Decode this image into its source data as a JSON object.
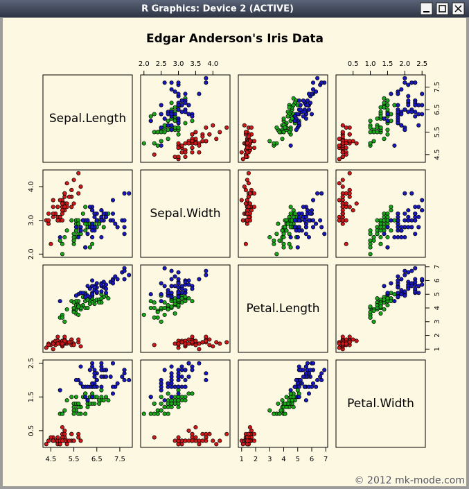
{
  "window": {
    "title": "R Graphics: Device 2 (ACTIVE)"
  },
  "footer": "© 2012 mk-mode.com",
  "chart_data": {
    "type": "scatter-matrix",
    "title": "Edgar Anderson's Iris Data",
    "variables": [
      {
        "name": "Sepal.Length",
        "lim": [
          4.156,
          8.044
        ],
        "xticks": [
          4.5,
          5.5,
          6.5,
          7.5
        ],
        "yticks": [
          4.5,
          5.5,
          6.5,
          7.5
        ]
      },
      {
        "name": "Sepal.Width",
        "lim": [
          1.904,
          4.496
        ],
        "xticks": [
          {
            "value": 2,
            "label": "2.0"
          },
          2.5,
          {
            "value": 3,
            "label": "3.0"
          },
          3.5,
          {
            "value": 4,
            "label": "4.0"
          }
        ],
        "yticks": [
          {
            "value": 2,
            "label": "2.0"
          },
          {
            "value": 3,
            "label": "3.0"
          },
          {
            "value": 4,
            "label": "4.0"
          }
        ]
      },
      {
        "name": "Petal.Length",
        "lim": [
          0.764,
          7.136
        ],
        "xticks": [
          1,
          2,
          3,
          4,
          5,
          6,
          7
        ],
        "yticks": [
          1,
          2,
          3,
          4,
          5,
          6,
          7
        ]
      },
      {
        "name": "Petal.Width",
        "lim": [
          0.004,
          2.596
        ],
        "xticks": [
          0.5,
          {
            "value": 1,
            "label": "1.0"
          },
          1.5,
          {
            "value": 2,
            "label": "2.0"
          },
          2.5
        ],
        "yticks": [
          0.5,
          1.5,
          2.5
        ]
      }
    ],
    "series": [
      {
        "color": "#d01818",
        "columns": [
          [
            5.1,
            4.9,
            4.7,
            4.6,
            5.0,
            5.4,
            4.6,
            5.0,
            4.4,
            4.9,
            5.4,
            4.8,
            4.8,
            4.3,
            5.8,
            5.7,
            5.4,
            5.1,
            5.7,
            5.1,
            5.4,
            5.1,
            4.6,
            5.1,
            4.8,
            5.0,
            5.0,
            5.2,
            5.2,
            4.7,
            4.8,
            5.4,
            5.2,
            5.5,
            4.9,
            5.0,
            5.5,
            4.9,
            4.4,
            5.1,
            5.0,
            4.5,
            4.4,
            5.0,
            5.1,
            4.8,
            5.1,
            4.6,
            5.3,
            5.0
          ],
          [
            3.5,
            3.0,
            3.2,
            3.1,
            3.6,
            3.9,
            3.4,
            3.4,
            2.9,
            3.1,
            3.7,
            3.4,
            3.0,
            3.0,
            4.0,
            4.4,
            3.9,
            3.5,
            3.8,
            3.8,
            3.4,
            3.7,
            3.6,
            3.3,
            3.4,
            3.0,
            3.4,
            3.5,
            3.4,
            3.2,
            3.1,
            3.4,
            4.1,
            4.2,
            3.1,
            3.2,
            3.5,
            3.6,
            3.0,
            3.4,
            3.5,
            2.3,
            3.2,
            3.5,
            3.8,
            3.0,
            3.8,
            3.2,
            3.7,
            3.3
          ],
          [
            1.4,
            1.4,
            1.3,
            1.5,
            1.4,
            1.7,
            1.4,
            1.5,
            1.4,
            1.5,
            1.5,
            1.6,
            1.4,
            1.1,
            1.2,
            1.5,
            1.3,
            1.4,
            1.7,
            1.5,
            1.7,
            1.5,
            1.0,
            1.7,
            1.9,
            1.6,
            1.6,
            1.5,
            1.4,
            1.6,
            1.6,
            1.5,
            1.5,
            1.4,
            1.5,
            1.2,
            1.3,
            1.4,
            1.3,
            1.5,
            1.3,
            1.3,
            1.3,
            1.6,
            1.9,
            1.4,
            1.6,
            1.4,
            1.5,
            1.4
          ],
          [
            0.2,
            0.2,
            0.2,
            0.2,
            0.2,
            0.4,
            0.3,
            0.2,
            0.2,
            0.1,
            0.2,
            0.2,
            0.1,
            0.1,
            0.2,
            0.4,
            0.4,
            0.3,
            0.3,
            0.3,
            0.2,
            0.4,
            0.2,
            0.5,
            0.2,
            0.2,
            0.4,
            0.2,
            0.2,
            0.2,
            0.2,
            0.4,
            0.1,
            0.2,
            0.2,
            0.2,
            0.2,
            0.1,
            0.2,
            0.2,
            0.3,
            0.3,
            0.2,
            0.6,
            0.4,
            0.3,
            0.2,
            0.2,
            0.2,
            0.2
          ]
        ]
      },
      {
        "color": "#18a818",
        "columns": [
          [
            7.0,
            6.4,
            6.9,
            5.5,
            6.5,
            5.7,
            6.3,
            4.9,
            6.6,
            5.2,
            5.0,
            5.9,
            6.0,
            6.1,
            5.6,
            6.7,
            5.6,
            5.8,
            6.2,
            5.6,
            5.9,
            6.1,
            6.3,
            6.1,
            6.4,
            6.6,
            6.8,
            6.7,
            6.0,
            5.7,
            5.5,
            5.5,
            5.8,
            6.0,
            5.4,
            6.0,
            6.7,
            6.3,
            5.6,
            5.5,
            5.5,
            6.1,
            5.8,
            5.0,
            5.6,
            5.7,
            5.7,
            6.2,
            5.1,
            5.7
          ],
          [
            3.2,
            3.2,
            3.1,
            2.3,
            2.8,
            2.8,
            3.3,
            2.4,
            2.9,
            2.7,
            2.0,
            3.0,
            2.2,
            2.9,
            2.9,
            3.1,
            3.0,
            2.7,
            2.2,
            2.5,
            3.2,
            2.8,
            2.5,
            2.8,
            2.9,
            3.0,
            2.8,
            3.0,
            2.9,
            2.6,
            2.4,
            2.4,
            2.7,
            2.7,
            3.0,
            3.4,
            3.1,
            2.3,
            3.0,
            2.5,
            2.6,
            3.0,
            2.6,
            2.3,
            2.7,
            3.0,
            2.9,
            2.9,
            2.5,
            2.8
          ],
          [
            4.7,
            4.5,
            4.9,
            4.0,
            4.6,
            4.5,
            4.7,
            3.3,
            4.6,
            3.9,
            3.5,
            4.2,
            4.0,
            4.7,
            3.6,
            4.4,
            4.5,
            4.1,
            4.5,
            3.9,
            4.8,
            4.0,
            4.9,
            4.7,
            4.3,
            4.4,
            4.8,
            5.0,
            4.5,
            3.5,
            3.8,
            3.7,
            3.9,
            5.1,
            4.5,
            4.5,
            4.7,
            4.4,
            4.1,
            4.0,
            4.4,
            4.6,
            4.0,
            3.3,
            4.2,
            4.2,
            4.2,
            4.3,
            3.0,
            4.1
          ],
          [
            1.4,
            1.5,
            1.5,
            1.3,
            1.5,
            1.3,
            1.6,
            1.0,
            1.3,
            1.4,
            1.0,
            1.5,
            1.0,
            1.4,
            1.3,
            1.4,
            1.5,
            1.0,
            1.5,
            1.1,
            1.8,
            1.3,
            1.5,
            1.2,
            1.3,
            1.4,
            1.4,
            1.7,
            1.5,
            1.0,
            1.1,
            1.0,
            1.2,
            1.6,
            1.5,
            1.6,
            1.5,
            1.3,
            1.3,
            1.3,
            1.2,
            1.4,
            1.2,
            1.0,
            1.3,
            1.2,
            1.3,
            1.3,
            1.1,
            1.3
          ]
        ]
      },
      {
        "color": "#1818c0",
        "columns": [
          [
            6.3,
            5.8,
            7.1,
            6.3,
            6.5,
            7.6,
            4.9,
            7.3,
            6.7,
            7.2,
            6.5,
            6.4,
            6.8,
            5.7,
            5.8,
            6.4,
            6.5,
            7.7,
            7.7,
            6.0,
            6.9,
            5.6,
            7.7,
            6.3,
            6.7,
            7.2,
            6.2,
            6.1,
            6.4,
            7.2,
            7.4,
            7.9,
            6.4,
            6.3,
            6.1,
            7.7,
            6.3,
            6.4,
            6.0,
            6.9,
            6.7,
            6.9,
            5.8,
            6.8,
            6.7,
            6.7,
            6.3,
            6.5,
            6.2,
            5.9
          ],
          [
            3.3,
            2.7,
            3.0,
            2.9,
            3.0,
            3.0,
            2.5,
            2.9,
            2.5,
            3.6,
            3.2,
            2.7,
            3.0,
            2.5,
            2.8,
            3.2,
            3.0,
            3.8,
            2.6,
            2.2,
            3.2,
            2.8,
            2.8,
            2.7,
            3.3,
            3.2,
            2.8,
            3.0,
            2.8,
            3.0,
            2.8,
            3.8,
            2.8,
            2.8,
            2.6,
            3.0,
            3.4,
            3.1,
            3.0,
            3.1,
            3.1,
            3.1,
            2.7,
            3.2,
            3.3,
            3.0,
            2.5,
            3.0,
            3.4,
            3.0
          ],
          [
            6.0,
            5.1,
            5.9,
            5.6,
            5.8,
            6.6,
            4.5,
            6.3,
            5.8,
            6.1,
            5.1,
            5.3,
            5.5,
            5.0,
            5.1,
            5.3,
            5.5,
            6.7,
            6.9,
            5.0,
            5.7,
            4.9,
            6.7,
            4.9,
            5.7,
            6.0,
            4.8,
            4.9,
            5.6,
            5.8,
            6.1,
            6.4,
            5.6,
            5.1,
            5.6,
            6.1,
            5.6,
            5.5,
            4.8,
            5.4,
            5.6,
            5.1,
            5.1,
            5.9,
            5.7,
            5.2,
            5.0,
            5.2,
            5.4,
            5.1
          ],
          [
            2.5,
            1.9,
            2.1,
            1.8,
            2.2,
            2.1,
            1.7,
            1.8,
            1.8,
            2.5,
            2.0,
            1.9,
            2.1,
            2.0,
            2.4,
            2.3,
            1.8,
            2.2,
            2.3,
            1.5,
            2.3,
            2.0,
            2.0,
            1.8,
            2.1,
            1.8,
            1.8,
            1.8,
            2.1,
            1.6,
            1.9,
            2.0,
            2.2,
            1.5,
            1.4,
            2.3,
            2.4,
            1.8,
            1.8,
            2.1,
            2.4,
            2.3,
            1.9,
            2.3,
            2.5,
            2.3,
            1.9,
            2.0,
            2.3,
            1.8
          ]
        ]
      }
    ]
  }
}
